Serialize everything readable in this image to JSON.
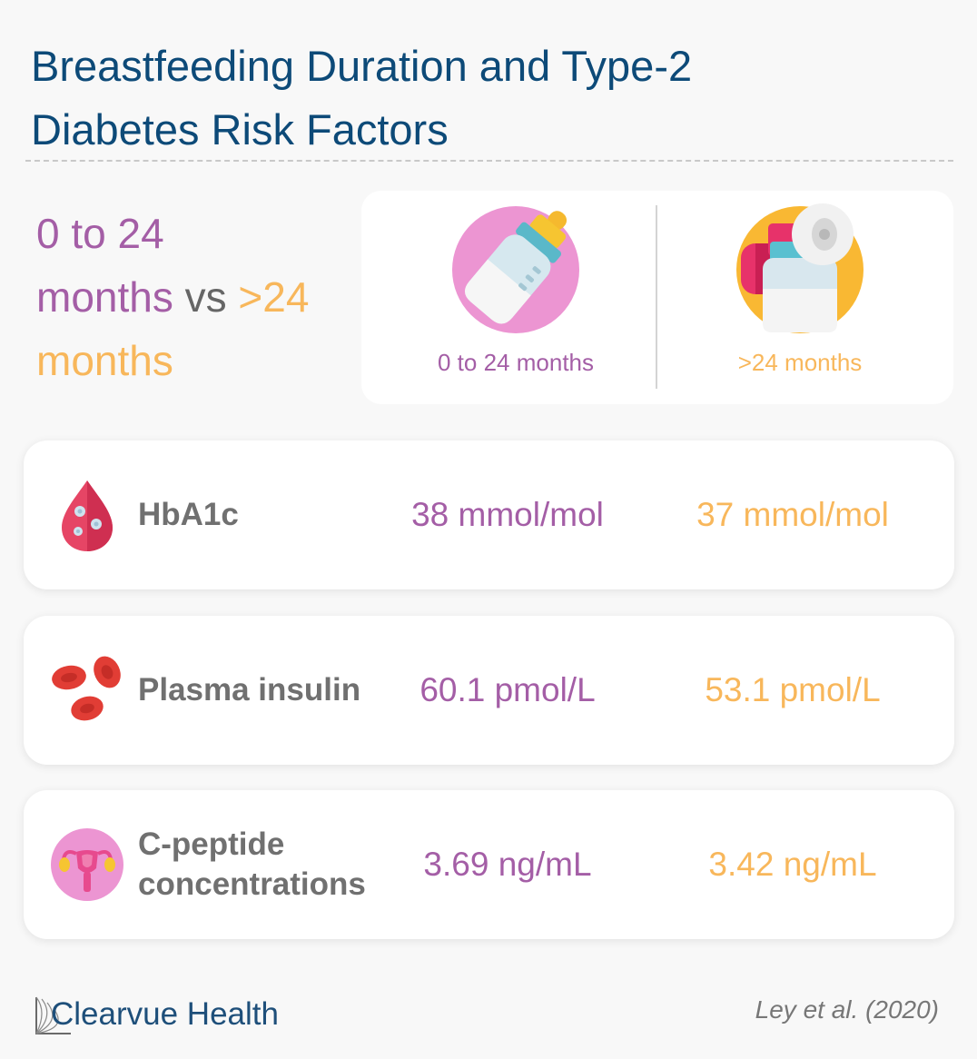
{
  "title": {
    "line1": "Breastfeeding Duration and Type-2",
    "line2": "Diabetes Risk Factors"
  },
  "comparison": {
    "group1": "0 to 24",
    "group1_unit": "months",
    "connector": "vs",
    "group2": ">24",
    "group2_unit": "months"
  },
  "legend": {
    "group1_label": "0 to 24 months",
    "group1_icon": "baby-bottle-icon",
    "group2_label": ">24 months",
    "group2_icon": "breast-pump-icon"
  },
  "rows": [
    {
      "icon": "blood-drop-icon",
      "label": "HbA1c",
      "value_group1": "38 mmol/mol",
      "value_group2": "37 mmol/mol"
    },
    {
      "icon": "red-blood-cells-icon",
      "label": "Plasma insulin",
      "value_group1": "60.1 pmol/L",
      "value_group2": "53.1 pmol/L"
    },
    {
      "icon": "uterus-icon",
      "label": "C-peptide concentrations",
      "value_group1": "3.69 ng/mL",
      "value_group2": "3.42 ng/mL"
    }
  ],
  "footer": {
    "brand": "Clearvue Health",
    "citation": "Ley et al. (2020)"
  },
  "colors": {
    "title": "#0d4a78",
    "group1": "#a45ea6",
    "group2": "#f8b75b",
    "label": "#707070"
  }
}
